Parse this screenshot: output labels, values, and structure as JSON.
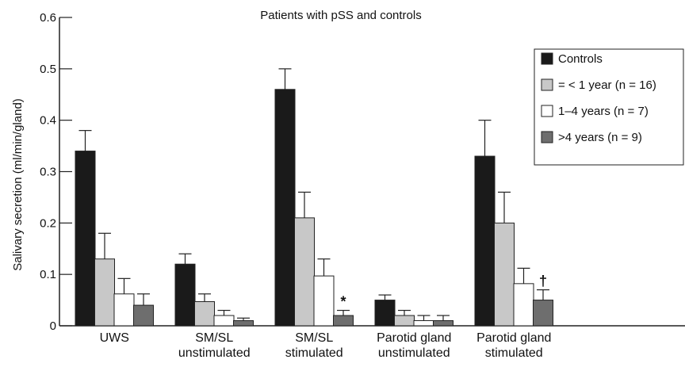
{
  "chart_data": {
    "type": "bar",
    "title": "Patients with pSS and controls",
    "ylabel": "Salivary secretion (ml/min/gland)",
    "xlabel": "",
    "ylim": [
      0,
      0.6
    ],
    "yticks": [
      0,
      0.1,
      0.2,
      0.3,
      0.4,
      0.5,
      0.6
    ],
    "ytick_labels": [
      "0",
      "0.1",
      "0.2",
      "0.3",
      "0.4",
      "0.5",
      "0.6"
    ],
    "categories": [
      [
        "UWS"
      ],
      [
        "SM/SL",
        "unstimulated"
      ],
      [
        "SM/SL",
        "stimulated"
      ],
      [
        "Parotid gland",
        "unstimulated"
      ],
      [
        "Parotid gland",
        "stimulated"
      ]
    ],
    "series": [
      {
        "name": "Controls",
        "color": "#1a1a1a",
        "values": [
          0.34,
          0.12,
          0.46,
          0.05,
          0.33
        ],
        "errors": [
          0.04,
          0.02,
          0.04,
          0.01,
          0.07
        ]
      },
      {
        "name": "= < 1 year (n = 16)",
        "color": "#c8c8c8",
        "values": [
          0.13,
          0.047,
          0.21,
          0.02,
          0.2
        ],
        "errors": [
          0.05,
          0.015,
          0.05,
          0.01,
          0.06
        ]
      },
      {
        "name": "1–4 years (n = 7)",
        "color": "#ffffff",
        "values": [
          0.062,
          0.02,
          0.097,
          0.01,
          0.082
        ],
        "errors": [
          0.03,
          0.01,
          0.033,
          0.01,
          0.03
        ]
      },
      {
        "name": ">4 years (n = 9)",
        "color": "#6e6e6e",
        "values": [
          0.04,
          0.01,
          0.02,
          0.01,
          0.05
        ],
        "errors": [
          0.022,
          0.005,
          0.01,
          0.01,
          0.02
        ]
      }
    ],
    "annotations": [
      {
        "text": "*",
        "category": 2,
        "series": 3
      },
      {
        "text": "†",
        "category": 4,
        "series": 3
      }
    ],
    "legend": "top-right",
    "grid": false
  }
}
